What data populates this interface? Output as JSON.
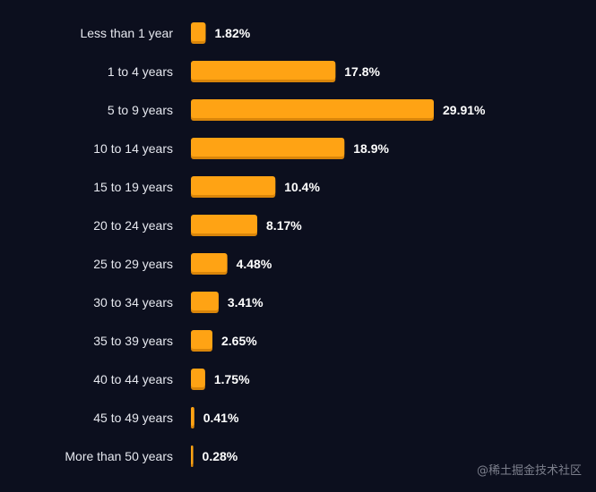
{
  "chart_data": {
    "type": "bar",
    "orientation": "horizontal",
    "categories": [
      "Less than 1 year",
      "1 to 4 years",
      "5 to 9 years",
      "10 to 14 years",
      "15 to 19 years",
      "20 to 24 years",
      "25 to 29 years",
      "30 to 34 years",
      "35 to 39 years",
      "40 to 44 years",
      "45 to 49 years",
      "More than 50 years"
    ],
    "values": [
      1.82,
      17.8,
      29.91,
      18.9,
      10.4,
      8.17,
      4.48,
      3.41,
      2.65,
      1.75,
      0.41,
      0.28
    ],
    "value_labels": [
      "1.82%",
      "17.8%",
      "29.91%",
      "18.9%",
      "10.4%",
      "8.17%",
      "4.48%",
      "3.41%",
      "2.65%",
      "1.75%",
      "0.41%",
      "0.28%"
    ],
    "xlim": [
      0,
      29.91
    ],
    "grid": false,
    "colors": {
      "bar": "#ffa314",
      "bar_shadow": "#d9850a",
      "background": "#0c0f1e"
    }
  },
  "watermark": "@稀土掘金技术社区"
}
